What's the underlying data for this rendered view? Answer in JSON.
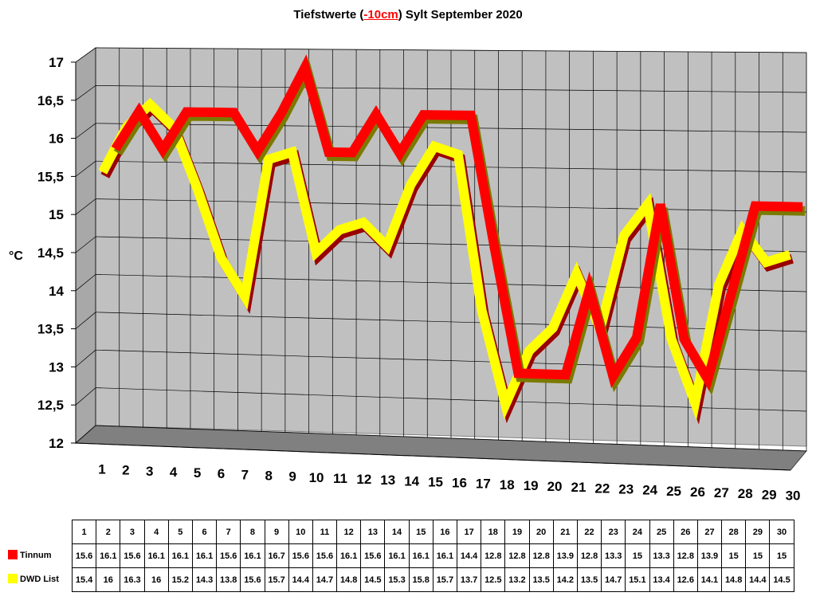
{
  "chart_data": {
    "type": "line",
    "title_prefix": "Tiefstwerte (",
    "title_highlight": "-10cm",
    "title_suffix": ") Sylt September 2020",
    "ylabel": "°C",
    "ylim": [
      12,
      17
    ],
    "y_ticks": [
      "12",
      "12,5",
      "13",
      "13,5",
      "14",
      "14,5",
      "15",
      "15,5",
      "16",
      "16,5",
      "17"
    ],
    "categories": [
      "1",
      "2",
      "3",
      "4",
      "5",
      "6",
      "7",
      "8",
      "9",
      "10",
      "11",
      "12",
      "13",
      "14",
      "15",
      "16",
      "17",
      "18",
      "19",
      "20",
      "21",
      "22",
      "23",
      "24",
      "25",
      "26",
      "27",
      "28",
      "29",
      "30"
    ],
    "series": [
      {
        "name": "Tinnum",
        "color": "#ff0000",
        "values": [
          15.6,
          16.1,
          15.6,
          16.1,
          16.1,
          16.1,
          15.6,
          16.1,
          16.7,
          15.6,
          15.6,
          16.1,
          15.6,
          16.1,
          16.1,
          16.1,
          14.4,
          12.8,
          12.8,
          12.8,
          13.9,
          12.8,
          13.3,
          15,
          13.3,
          12.8,
          13.9,
          15,
          15,
          15
        ],
        "table": [
          "15.6",
          "16.1",
          "15.6",
          "16.1",
          "16.1",
          "16.1",
          "15.6",
          "16.1",
          "16.7",
          "15.6",
          "15.6",
          "16.1",
          "15.6",
          "16.1",
          "16.1",
          "16.1",
          "14.4",
          "12.8",
          "12.8",
          "12.8",
          "13.9",
          "12.8",
          "13.3",
          "15",
          "13.3",
          "12.8",
          "13.9",
          "15",
          "15",
          "15"
        ]
      },
      {
        "name": "DWD List",
        "color": "#ffff00",
        "values": [
          15.4,
          16,
          16.3,
          16,
          15.2,
          14.3,
          13.8,
          15.6,
          15.7,
          14.4,
          14.7,
          14.8,
          14.5,
          15.3,
          15.8,
          15.7,
          13.7,
          12.5,
          13.2,
          13.5,
          14.2,
          13.5,
          14.7,
          15.1,
          13.4,
          12.6,
          14.1,
          14.8,
          14.4,
          14.5
        ],
        "table": [
          "15.4",
          "16",
          "16.3",
          "16",
          "15.2",
          "14.3",
          "13.8",
          "15.6",
          "15.7",
          "14.4",
          "14.7",
          "14.8",
          "14.5",
          "15.3",
          "15.8",
          "15.7",
          "13.7",
          "12.5",
          "13.2",
          "13.5",
          "14.2",
          "13.5",
          "14.7",
          "15.1",
          "13.4",
          "12.6",
          "14.1",
          "14.8",
          "14.4",
          "14.5"
        ]
      }
    ],
    "grid": true,
    "legend": "table-below"
  }
}
